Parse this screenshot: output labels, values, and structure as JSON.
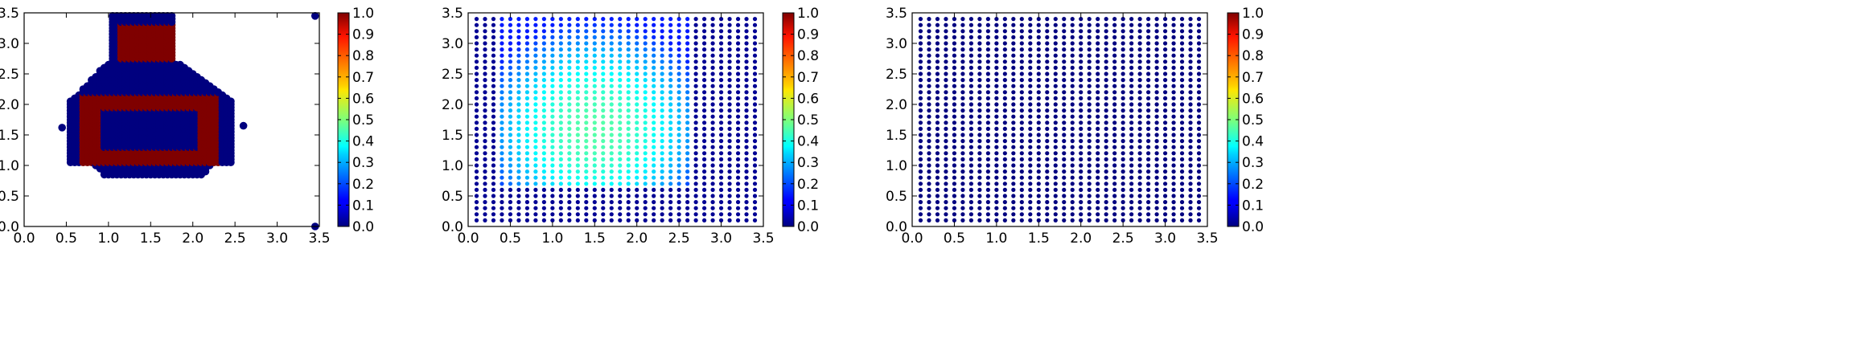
{
  "colorbar": {
    "ticks": [
      "0.0",
      "0.1",
      "0.2",
      "0.3",
      "0.4",
      "0.5",
      "0.6",
      "0.7",
      "0.8",
      "0.9",
      "1.0"
    ],
    "colormap": "jet"
  },
  "chart_data": [
    {
      "type": "scatter",
      "title": "",
      "xlabel": "",
      "ylabel": "",
      "xlim": [
        0,
        3.5
      ],
      "ylim": [
        0,
        3.5
      ],
      "xticks": [
        "0.0",
        "0.5",
        "1.0",
        "1.5",
        "2.0",
        "2.5",
        "3.0",
        "3.5"
      ],
      "yticks": [
        "0.0",
        "0.5",
        "1.0",
        "1.5",
        "2.0",
        "2.5",
        "3.0",
        "3.5"
      ],
      "grid": false,
      "colorbar_range": [
        0,
        1
      ],
      "description_of_values": "Points lie inside a bottle-shaped region; blue (0) points fill the shape, red (1) points form a rectangular ring and the bottle neck; two isolated points at the corners.",
      "regions": {
        "blue_fill": "bottle body x 0.45–2.6, y 0.85–2.7; neck x 1.0–1.75, y 2.7–3.45",
        "red_ring": "rectangle x 0.7–2.3, y 1.05–2.15, band ~0.25 wide",
        "red_neck": "x 1.1–1.85, y 2.7–3.3"
      },
      "extra_points": [
        {
          "x": 3.45,
          "y": 3.45,
          "value": 0
        },
        {
          "x": 3.45,
          "y": 0.0,
          "value": 0
        }
      ]
    },
    {
      "type": "scatter",
      "title": "",
      "xlabel": "",
      "ylabel": "",
      "xlim": [
        0,
        3.5
      ],
      "ylim": [
        0,
        3.5
      ],
      "xticks": [
        "0.0",
        "0.5",
        "1.0",
        "1.5",
        "2.0",
        "2.5",
        "3.0",
        "3.5"
      ],
      "yticks": [
        "0.0",
        "0.5",
        "1.0",
        "1.5",
        "2.0",
        "2.5",
        "3.0",
        "3.5"
      ],
      "grid": false,
      "colorbar_range": [
        0,
        1
      ],
      "grid_points": {
        "x_start": 0.1,
        "x_end": 3.4,
        "y_start": 0.1,
        "y_end": 3.4,
        "step": 0.1
      },
      "description_of_values": "Regular grid; values ~0.3–0.45 inside x 0.4–2.6, y 0.7–3.4, peaking near (1.5, 1.5); ~0 elsewhere."
    },
    {
      "type": "scatter",
      "title": "",
      "xlabel": "",
      "ylabel": "",
      "xlim": [
        0,
        3.5
      ],
      "ylim": [
        0,
        3.5
      ],
      "xticks": [
        "0.0",
        "0.5",
        "1.0",
        "1.5",
        "2.0",
        "2.5",
        "3.0",
        "3.5"
      ],
      "yticks": [
        "0.0",
        "0.5",
        "1.0",
        "1.5",
        "2.0",
        "2.5",
        "3.0",
        "3.5"
      ],
      "grid": false,
      "colorbar_range": [
        0,
        1
      ],
      "grid_points": {
        "x_start": 0.1,
        "x_end": 3.4,
        "y_start": 0.1,
        "y_end": 3.4,
        "step": 0.1
      },
      "description_of_values": "Regular grid; all values ~0 (uniform dark blue)."
    }
  ]
}
